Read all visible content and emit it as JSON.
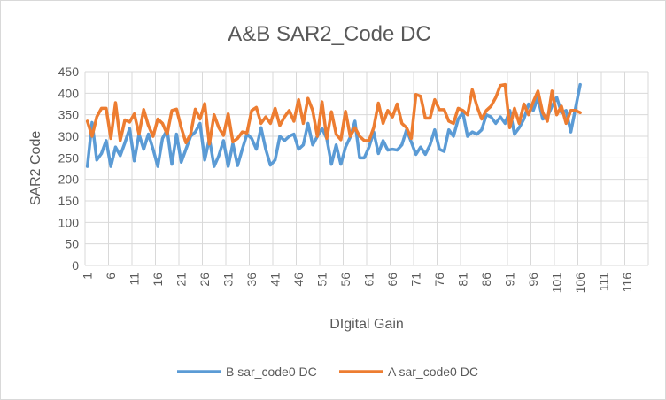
{
  "chart_data": {
    "type": "line",
    "title": "A&B SAR2_Code DC",
    "xlabel": "DIgital Gain",
    "ylabel": "SAR2 Code",
    "ylim": [
      0,
      450
    ],
    "yticks": [
      0,
      50,
      100,
      150,
      200,
      250,
      300,
      350,
      400,
      450
    ],
    "xlim": [
      1,
      120
    ],
    "xticks": [
      1,
      6,
      11,
      16,
      21,
      26,
      31,
      36,
      41,
      46,
      51,
      56,
      61,
      66,
      71,
      76,
      81,
      86,
      91,
      96,
      101,
      106,
      111,
      116
    ],
    "grid": "major-both",
    "legend_position": "bottom",
    "series": [
      {
        "name": "B sar_code0 DC",
        "color": "#5b9bd5",
        "values": [
          230,
          332,
          245,
          260,
          290,
          230,
          275,
          255,
          285,
          318,
          243,
          305,
          270,
          305,
          270,
          230,
          295,
          315,
          235,
          305,
          240,
          270,
          300,
          310,
          330,
          245,
          295,
          230,
          255,
          290,
          230,
          283,
          232,
          270,
          305,
          295,
          270,
          320,
          270,
          233,
          245,
          300,
          290,
          300,
          305,
          270,
          280,
          330,
          280,
          300,
          318,
          295,
          235,
          280,
          235,
          275,
          298,
          335,
          250,
          250,
          275,
          310,
          260,
          290,
          268,
          270,
          268,
          280,
          315,
          287,
          258,
          275,
          258,
          280,
          315,
          270,
          265,
          315,
          300,
          340,
          355,
          300,
          310,
          305,
          315,
          350,
          345,
          330,
          345,
          330,
          360,
          305,
          320,
          340,
          375,
          360,
          390,
          340,
          345,
          370,
          390,
          355,
          360,
          310,
          365,
          420
        ]
      },
      {
        "name": "A sar_code0 DC",
        "color": "#ed7d31",
        "values": [
          335,
          300,
          345,
          365,
          365,
          295,
          378,
          290,
          338,
          333,
          352,
          305,
          362,
          325,
          300,
          340,
          330,
          305,
          360,
          363,
          320,
          285,
          305,
          363,
          340,
          376,
          282,
          350,
          320,
          302,
          352,
          287,
          295,
          310,
          308,
          360,
          367,
          330,
          345,
          330,
          365,
          325,
          345,
          360,
          335,
          385,
          330,
          388,
          360,
          300,
          380,
          295,
          357,
          305,
          292,
          358,
          300,
          320,
          300,
          290,
          290,
          320,
          377,
          330,
          360,
          345,
          375,
          330,
          320,
          295,
          397,
          393,
          342,
          342,
          385,
          362,
          362,
          335,
          330,
          365,
          360,
          350,
          408,
          370,
          340,
          360,
          370,
          390,
          418,
          420,
          320,
          365,
          330,
          375,
          350,
          380,
          405,
          355,
          335,
          405,
          350,
          370,
          330,
          360,
          360,
          355
        ]
      }
    ]
  }
}
